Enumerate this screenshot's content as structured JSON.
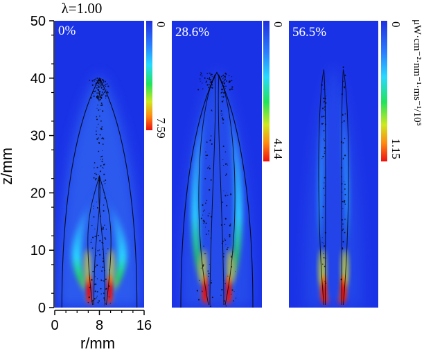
{
  "figure": {
    "lambda_label": "λ=1.00",
    "unit_label": "μW·cm⁻²·nm⁻¹·ms⁻¹/10⁵"
  },
  "chart_data": {
    "type": "heatmap",
    "xlabel": "r/mm",
    "ylabel": "z/mm",
    "xlim": [
      0,
      16
    ],
    "ylim": [
      0,
      50
    ],
    "x_ticks": [
      "0",
      "8",
      "16"
    ],
    "y_ticks": [
      "0",
      "10",
      "20",
      "30",
      "40",
      "50"
    ],
    "panels": [
      {
        "label": "0%",
        "colorbar_min": "0",
        "colorbar_max": "7.59",
        "flame_tip_z": 40,
        "inner_tip_z": 23
      },
      {
        "label": "28.6%",
        "colorbar_min": "0",
        "colorbar_max": "4.14",
        "flame_tip_z": 41,
        "inner_tip_z": 38
      },
      {
        "label": "56.5%",
        "colorbar_min": "0",
        "colorbar_max": "1.15",
        "flame_tip_z": 42,
        "inner_tip_z": 42
      }
    ],
    "colors": {
      "background": "#1a32e6",
      "low": "#2a55f2",
      "mid": "#2ad8ff",
      "high_green": "#1ee61e",
      "high_yellow": "#f0e81e",
      "max_red": "#e81010"
    }
  }
}
